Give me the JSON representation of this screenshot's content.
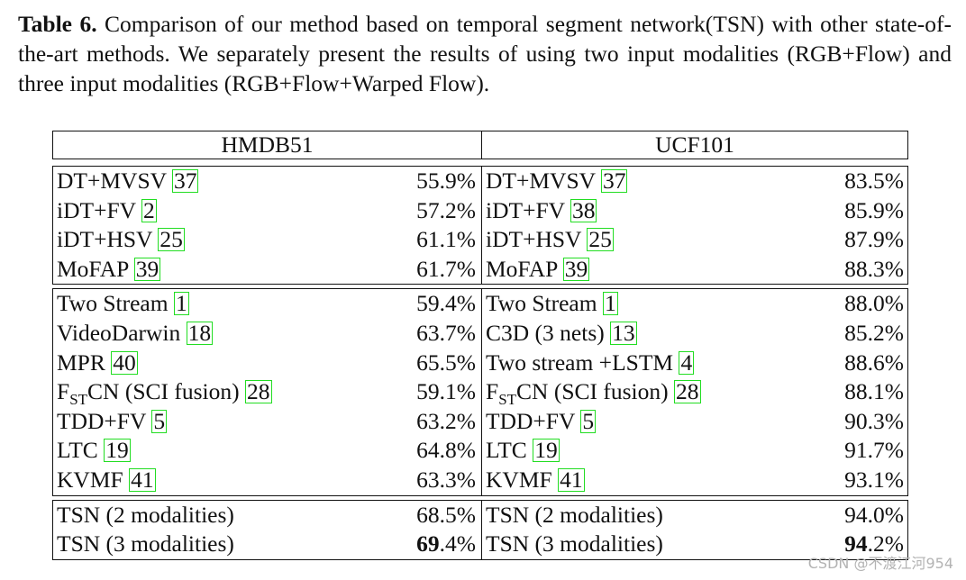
{
  "caption": {
    "label": "Table 6.",
    "text": " Comparison of our method based on temporal segment network(TSN) with other state-of-the-art methods. We separately present the results of using two input modalities (RGB+Flow) and three input modalities (RGB+Flow+Warped Flow)."
  },
  "headers": {
    "left": "HMDB51",
    "right": "UCF101"
  },
  "group1": [
    {
      "m1": "DT+MVSV ",
      "r1": "37",
      "v1": "55.9%",
      "m2": "DT+MVSV ",
      "r2": "37",
      "v2": "83.5%"
    },
    {
      "m1": "iDT+FV ",
      "r1": "2",
      "v1": "57.2%",
      "m2": "iDT+FV ",
      "r2": "38",
      "v2": "85.9%"
    },
    {
      "m1": "iDT+HSV ",
      "r1": "25",
      "v1": "61.1%",
      "m2": "iDT+HSV ",
      "r2": "25",
      "v2": "87.9%"
    },
    {
      "m1": "MoFAP ",
      "r1": "39",
      "v1": "61.7%",
      "m2": "MoFAP ",
      "r2": "39",
      "v2": "88.3%"
    }
  ],
  "group2": [
    {
      "m1": "Two Stream ",
      "r1": "1",
      "v1": "59.4%",
      "m2": "Two Stream ",
      "r2": "1",
      "v2": "88.0%"
    },
    {
      "m1": "VideoDarwin ",
      "r1": "18",
      "v1": "63.7%",
      "m2": "C3D (3 nets) ",
      "r2": "13",
      "v2": "85.2%"
    },
    {
      "m1": "MPR ",
      "r1": "40",
      "v1": "65.5%",
      "m2": "Two stream +LSTM ",
      "r2": "4",
      "v2": "88.6%"
    },
    {
      "m1": "F_ST_CN (SCI fusion) ",
      "r1": "28",
      "v1": "59.1%",
      "m2": "F_ST_CN (SCI fusion) ",
      "r2": "28",
      "v2": "88.1%"
    },
    {
      "m1": "TDD+FV ",
      "r1": "5",
      "v1": "63.2%",
      "m2": "TDD+FV ",
      "r2": "5",
      "v2": "90.3%"
    },
    {
      "m1": "LTC ",
      "r1": "19",
      "v1": "64.8%",
      "m2": "LTC ",
      "r2": "19",
      "v2": "91.7%"
    },
    {
      "m1": "KVMF ",
      "r1": "41",
      "v1": "63.3%",
      "m2": "KVMF ",
      "r2": "41",
      "v2": "93.1%"
    }
  ],
  "group3": [
    {
      "m1": "TSN (2 modalities)",
      "v1": "68.5%",
      "m2": "TSN (2 modalities)",
      "v2": "94.0%"
    },
    {
      "m1": "TSN (3 modalities)",
      "v1": "69.4%",
      "m2": "TSN (3 modalities)",
      "v2": "94.2%",
      "bold": true
    }
  ],
  "watermark": "CSDN @不渡江河954",
  "colors": {
    "ref_box": "#22dd22",
    "text": "#111111"
  }
}
